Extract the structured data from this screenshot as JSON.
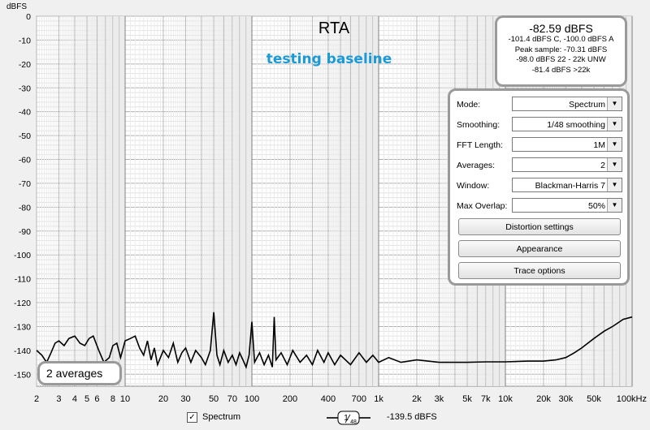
{
  "chart_data": {
    "type": "line",
    "title": "RTA",
    "subtitle": "testing baseline",
    "ylabel": "dBFS",
    "xlabel": "",
    "x_scale": "log",
    "xlim": [
      2,
      100000
    ],
    "ylim": [
      -155,
      0
    ],
    "y_ticks": [
      0,
      -10,
      -20,
      -30,
      -40,
      -50,
      -60,
      -70,
      -80,
      -90,
      -100,
      -110,
      -120,
      -130,
      -140,
      -150
    ],
    "x_ticks": [
      {
        "v": 2,
        "t": "2"
      },
      {
        "v": 3,
        "t": "3"
      },
      {
        "v": 4,
        "t": "4"
      },
      {
        "v": 5,
        "t": "5"
      },
      {
        "v": 6,
        "t": "6"
      },
      {
        "v": 8,
        "t": "8"
      },
      {
        "v": 10,
        "t": "10"
      },
      {
        "v": 20,
        "t": "20"
      },
      {
        "v": 30,
        "t": "30"
      },
      {
        "v": 50,
        "t": "50"
      },
      {
        "v": 70,
        "t": "70"
      },
      {
        "v": 100,
        "t": "100"
      },
      {
        "v": 200,
        "t": "200"
      },
      {
        "v": 400,
        "t": "400"
      },
      {
        "v": 700,
        "t": "700"
      },
      {
        "v": 1000,
        "t": "1k"
      },
      {
        "v": 2000,
        "t": "2k"
      },
      {
        "v": 3000,
        "t": "3k"
      },
      {
        "v": 5000,
        "t": "5k"
      },
      {
        "v": 7000,
        "t": "7k"
      },
      {
        "v": 10000,
        "t": "10k"
      },
      {
        "v": 20000,
        "t": "20k"
      },
      {
        "v": 30000,
        "t": "30k"
      },
      {
        "v": 50000,
        "t": "50k"
      },
      {
        "v": 100000,
        "t": "100kHz"
      }
    ],
    "grid": true,
    "series": [
      {
        "name": "Spectrum",
        "color": "#000000",
        "points": [
          [
            2,
            -140
          ],
          [
            2.2,
            -142
          ],
          [
            2.4,
            -145
          ],
          [
            2.6,
            -141
          ],
          [
            2.8,
            -137
          ],
          [
            3,
            -136
          ],
          [
            3.3,
            -138
          ],
          [
            3.6,
            -135
          ],
          [
            4,
            -134
          ],
          [
            4.4,
            -137
          ],
          [
            4.8,
            -138
          ],
          [
            5.2,
            -135
          ],
          [
            5.6,
            -134
          ],
          [
            6.2,
            -140
          ],
          [
            6.8,
            -145
          ],
          [
            7.5,
            -143
          ],
          [
            8,
            -138
          ],
          [
            8.6,
            -137
          ],
          [
            9.2,
            -143
          ],
          [
            10,
            -136
          ],
          [
            11,
            -135
          ],
          [
            12,
            -134
          ],
          [
            13,
            -139
          ],
          [
            14,
            -142
          ],
          [
            15,
            -136
          ],
          [
            16,
            -144
          ],
          [
            17,
            -139
          ],
          [
            18,
            -146
          ],
          [
            20,
            -140
          ],
          [
            22,
            -143
          ],
          [
            24,
            -137
          ],
          [
            26,
            -145
          ],
          [
            28,
            -141
          ],
          [
            30,
            -139
          ],
          [
            33,
            -145
          ],
          [
            36,
            -140
          ],
          [
            40,
            -143
          ],
          [
            43,
            -146
          ],
          [
            47,
            -140
          ],
          [
            50,
            -124
          ],
          [
            53,
            -142
          ],
          [
            56,
            -146
          ],
          [
            60,
            -140
          ],
          [
            65,
            -145
          ],
          [
            70,
            -142
          ],
          [
            75,
            -146
          ],
          [
            80,
            -141
          ],
          [
            85,
            -144
          ],
          [
            90,
            -147
          ],
          [
            95,
            -142
          ],
          [
            100,
            -128
          ],
          [
            105,
            -145
          ],
          [
            115,
            -141
          ],
          [
            125,
            -146
          ],
          [
            135,
            -142
          ],
          [
            145,
            -147
          ],
          [
            150,
            -126
          ],
          [
            155,
            -144
          ],
          [
            170,
            -141
          ],
          [
            190,
            -146
          ],
          [
            210,
            -140
          ],
          [
            240,
            -145
          ],
          [
            270,
            -142
          ],
          [
            300,
            -146
          ],
          [
            330,
            -140
          ],
          [
            370,
            -145
          ],
          [
            400,
            -141
          ],
          [
            450,
            -146
          ],
          [
            500,
            -142
          ],
          [
            600,
            -146
          ],
          [
            700,
            -141
          ],
          [
            800,
            -145
          ],
          [
            900,
            -142
          ],
          [
            1000,
            -145
          ],
          [
            1200,
            -143
          ],
          [
            1500,
            -145
          ],
          [
            2000,
            -144
          ],
          [
            3000,
            -145
          ],
          [
            5000,
            -145
          ],
          [
            7000,
            -144.8
          ],
          [
            10000,
            -144.8
          ],
          [
            15000,
            -144.5
          ],
          [
            20000,
            -144.5
          ],
          [
            25000,
            -144
          ],
          [
            30000,
            -143
          ],
          [
            35000,
            -141
          ],
          [
            40000,
            -139
          ],
          [
            50000,
            -135
          ],
          [
            60000,
            -132
          ],
          [
            70000,
            -130
          ],
          [
            85000,
            -127
          ],
          [
            100000,
            -126
          ]
        ]
      }
    ]
  },
  "readout": {
    "main": "-82.59 dBFS",
    "lines": [
      "-101.4 dBFS C, -100.0 dBFS A",
      "Peak sample: -70.31 dBFS",
      "-98.0 dBFS 22 - 22k UNW",
      "-81.4 dBFS >22k"
    ]
  },
  "controls": {
    "rows": [
      {
        "label": "Mode:",
        "value": "Spectrum"
      },
      {
        "label": "Smoothing:",
        "value": "1/48 smoothing"
      },
      {
        "label": "FFT Length:",
        "value": "1M"
      },
      {
        "label": "Averages:",
        "value": "2"
      },
      {
        "label": "Window:",
        "value": "Blackman-Harris 7"
      },
      {
        "label": "Max Overlap:",
        "value": "50%"
      }
    ],
    "buttons": [
      "Distortion settings",
      "Appearance",
      "Trace options"
    ]
  },
  "averages_badge": "2 averages",
  "legend": {
    "checkbox_label": "Spectrum",
    "smoothing_num": "1",
    "smoothing_den": "48",
    "value": "-139.5 dBFS"
  }
}
